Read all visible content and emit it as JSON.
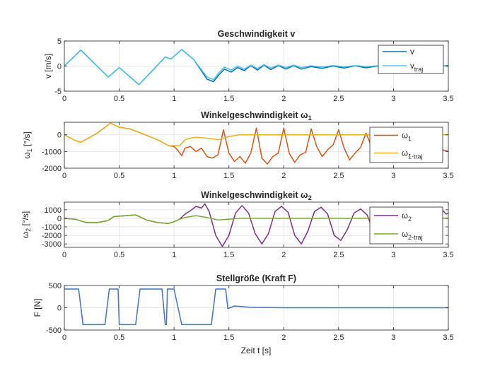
{
  "figure": {
    "xlabel": "Zeit t [s]"
  },
  "chart_data": [
    {
      "type": "line",
      "title": "Geschwindigkeit v",
      "xlabel": "",
      "ylabel": "v [m/s]",
      "xlim": [
        0,
        3.5
      ],
      "ylim": [
        -5,
        5
      ],
      "xticks": [
        0,
        0.5,
        1,
        1.5,
        2,
        2.5,
        3,
        3.5
      ],
      "xtick_labels": [
        "0",
        "0.5",
        "1",
        "1.5",
        "2",
        "2.5",
        "3",
        "3.5"
      ],
      "yticks": [
        -5,
        0,
        5
      ],
      "ytick_labels": [
        "-5",
        "0",
        "5"
      ],
      "grid": true,
      "legend": "top-right",
      "series": [
        {
          "name": "v",
          "color": "#0072BD",
          "x": [
            0,
            0.15,
            0.4,
            0.5,
            0.68,
            0.92,
            0.97,
            1.07,
            1.18,
            1.3,
            1.36,
            1.41,
            1.46,
            1.52,
            1.58,
            1.64,
            1.7,
            1.76,
            1.82,
            1.88,
            1.95,
            2.02,
            2.09,
            2.16,
            2.25,
            2.35,
            2.45,
            2.55,
            2.65,
            2.75,
            2.85,
            2.95,
            3.05,
            3.15,
            3.25,
            3.35,
            3.5
          ],
          "y": [
            0,
            3.2,
            -2.2,
            -0.3,
            -3.7,
            1.8,
            1.4,
            3.3,
            1.3,
            -2.6,
            -3.1,
            -1.7,
            -0.6,
            -1.2,
            -0.3,
            -0.9,
            0.1,
            -0.8,
            0.2,
            -0.7,
            0.1,
            -0.6,
            0.1,
            -0.6,
            -0.1,
            -0.45,
            0.0,
            -0.4,
            0.05,
            -0.35,
            0.0,
            -0.3,
            0.05,
            -0.25,
            0.0,
            -0.15,
            0.1
          ]
        },
        {
          "name": "v_traj",
          "color": "#4DBEEE",
          "x": [
            0,
            0.15,
            0.4,
            0.5,
            0.68,
            0.92,
            0.97,
            1.07,
            1.18,
            1.3,
            1.36,
            1.41,
            1.46,
            1.52,
            1.58,
            1.64,
            1.7,
            1.76,
            1.82,
            1.88,
            1.95,
            2.02,
            2.09,
            2.16,
            2.25,
            2.35,
            2.45,
            2.55,
            2.65,
            2.75,
            2.85,
            2.95,
            3.05,
            3.15,
            3.25,
            3.35,
            3.5
          ],
          "y": [
            0,
            3.2,
            -2.2,
            -0.3,
            -3.7,
            1.8,
            1.4,
            3.3,
            1.3,
            -2.2,
            -2.7,
            -1.3,
            -0.2,
            -0.8,
            0.0,
            -0.6,
            0.2,
            -0.5,
            0.3,
            -0.4,
            0.2,
            -0.3,
            0.2,
            -0.3,
            0.05,
            -0.2,
            0.1,
            -0.15,
            0.1,
            -0.1,
            0.05,
            -0.1,
            0.05,
            -0.05,
            0.05,
            0.0,
            0.0
          ]
        }
      ]
    },
    {
      "type": "line",
      "title": "Winkelgeschwindigkeit ω1",
      "xlabel": "",
      "ylabel": "ω1 [°/s]",
      "xlim": [
        0,
        3.5
      ],
      "ylim": [
        -2000,
        750
      ],
      "xticks": [
        0,
        0.5,
        1,
        1.5,
        2,
        2.5,
        3,
        3.5
      ],
      "xtick_labels": [
        "0",
        "0.5",
        "1",
        "1.5",
        "2",
        "2.5",
        "3",
        "3.5"
      ],
      "yticks": [
        -2000,
        -1000,
        0
      ],
      "ytick_labels": [
        "-2000",
        "-1000",
        "0"
      ],
      "grid": true,
      "legend": "top-right",
      "series": [
        {
          "name": "ω1",
          "color": "#D95319",
          "x": [
            0,
            0.1,
            0.15,
            0.3,
            0.42,
            0.5,
            0.6,
            0.7,
            0.85,
            0.95,
            1.0,
            1.03,
            1.07,
            1.1,
            1.15,
            1.2,
            1.25,
            1.3,
            1.35,
            1.4,
            1.45,
            1.5,
            1.55,
            1.6,
            1.65,
            1.7,
            1.75,
            1.8,
            1.85,
            1.9,
            1.95,
            2.0,
            2.05,
            2.1,
            2.15,
            2.2,
            2.25,
            2.3,
            2.35,
            2.4,
            2.45,
            2.5,
            2.55,
            2.6,
            2.65,
            2.7,
            2.75,
            2.8,
            2.85,
            2.9,
            2.95,
            3.0,
            3.05,
            3.1,
            3.15,
            3.2,
            3.25,
            3.3,
            3.35,
            3.4,
            3.45,
            3.5
          ],
          "y": [
            0,
            -350,
            -450,
            100,
            700,
            450,
            350,
            100,
            -300,
            -650,
            -700,
            -900,
            -1250,
            -800,
            -700,
            -1000,
            -800,
            -1300,
            -1400,
            -1200,
            300,
            -1100,
            -1600,
            -1300,
            -1700,
            -1100,
            400,
            -1400,
            -1750,
            -1300,
            -1100,
            400,
            -1100,
            -1650,
            -1200,
            -1050,
            350,
            -700,
            -1300,
            -900,
            -600,
            300,
            -800,
            -1500,
            -1100,
            -750,
            100,
            -700,
            -1450,
            -1000,
            -800,
            50,
            -800,
            -1500,
            -1100,
            -800,
            0,
            -700,
            -1400,
            -900,
            -900,
            -1000
          ]
        },
        {
          "name": "ω1-traj",
          "color": "#EDB120",
          "x": [
            0,
            0.1,
            0.15,
            0.3,
            0.42,
            0.5,
            0.6,
            0.7,
            0.85,
            0.95,
            1.0,
            1.05,
            1.1,
            1.15,
            1.2,
            1.3,
            1.4,
            1.5,
            1.6,
            1.8,
            2.0,
            2.5,
            3.0,
            3.5
          ],
          "y": [
            0,
            -350,
            -450,
            100,
            700,
            450,
            350,
            100,
            -300,
            -650,
            -650,
            -650,
            -300,
            -200,
            -150,
            -200,
            -300,
            -100,
            0,
            0,
            0,
            0,
            0,
            0
          ]
        }
      ]
    },
    {
      "type": "line",
      "title": "Winkelgeschwindigkeit ω2",
      "xlabel": "",
      "ylabel": "ω2 [°/s]",
      "xlim": [
        0,
        3.5
      ],
      "ylim": [
        -3400,
        1900
      ],
      "xticks": [
        0,
        0.5,
        1,
        1.5,
        2,
        2.5,
        3,
        3.5
      ],
      "xtick_labels": [
        "0",
        "0.5",
        "1",
        "1.5",
        "2",
        "2.5",
        "3",
        "3.5"
      ],
      "yticks": [
        -3000,
        -2000,
        -1000,
        0,
        1000
      ],
      "ytick_labels": [
        "-3000",
        "-2000",
        "-1000",
        "0",
        "1000"
      ],
      "grid": true,
      "legend": "top-right",
      "series": [
        {
          "name": "ω2",
          "color": "#7E2F8E",
          "x": [
            0,
            0.1,
            0.2,
            0.3,
            0.4,
            0.45,
            0.55,
            0.65,
            0.75,
            0.85,
            0.95,
            1.0,
            1.05,
            1.1,
            1.15,
            1.2,
            1.25,
            1.28,
            1.32,
            1.38,
            1.44,
            1.5,
            1.56,
            1.62,
            1.68,
            1.74,
            1.8,
            1.86,
            1.92,
            1.98,
            2.04,
            2.1,
            2.16,
            2.22,
            2.28,
            2.34,
            2.4,
            2.46,
            2.52,
            2.58,
            2.64,
            2.7,
            2.76,
            2.82,
            2.88,
            2.94,
            3.0,
            3.06,
            3.12,
            3.18,
            3.24,
            3.3,
            3.36,
            3.42,
            3.48,
            3.5
          ],
          "y": [
            0,
            -100,
            -500,
            -500,
            -250,
            200,
            300,
            400,
            -200,
            -500,
            -600,
            -400,
            -100,
            500,
            900,
            1400,
            1200,
            1700,
            800,
            -2000,
            -3300,
            -2000,
            600,
            1500,
            600,
            -1800,
            -3000,
            -1800,
            800,
            1400,
            700,
            -2000,
            -3000,
            -1500,
            800,
            1300,
            500,
            -2000,
            -2600,
            -1300,
            600,
            1100,
            400,
            -1600,
            -2300,
            -1100,
            600,
            1000,
            300,
            -1200,
            -1700,
            -700,
            500,
            1300,
            500,
            600
          ]
        },
        {
          "name": "ω2-traj",
          "color": "#77AC30",
          "x": [
            0,
            0.1,
            0.2,
            0.3,
            0.4,
            0.45,
            0.55,
            0.65,
            0.75,
            0.85,
            0.95,
            1.0,
            1.05,
            1.1,
            1.2,
            1.3,
            1.4,
            1.5,
            1.6,
            1.8,
            2.0,
            2.5,
            3.0,
            3.5
          ],
          "y": [
            0,
            -100,
            -500,
            -500,
            -250,
            200,
            300,
            400,
            -200,
            -500,
            -600,
            -400,
            -100,
            100,
            300,
            100,
            -200,
            -100,
            0,
            0,
            0,
            0,
            0,
            0
          ]
        }
      ]
    },
    {
      "type": "line",
      "title": "Stellgröße (Kraft F)",
      "xlabel": "Zeit t [s]",
      "ylabel": "F [N]",
      "xlim": [
        0,
        3.5
      ],
      "ylim": [
        -500,
        500
      ],
      "xticks": [
        0,
        0.5,
        1,
        1.5,
        2,
        2.5,
        3,
        3.5
      ],
      "xtick_labels": [
        "0",
        "0.5",
        "1",
        "1.5",
        "2",
        "2.5",
        "3",
        "3.5"
      ],
      "yticks": [
        -500,
        0,
        500
      ],
      "ytick_labels": [
        "-500",
        "0",
        "500"
      ],
      "grid": true,
      "legend": "none",
      "series": [
        {
          "name": "F",
          "color": "#4472C4",
          "x": [
            0,
            0.13,
            0.17,
            0.37,
            0.41,
            0.44,
            0.49,
            0.5,
            0.65,
            0.69,
            0.89,
            0.92,
            0.93,
            0.94,
            0.97,
            1.0,
            1.07,
            1.12,
            1.34,
            1.38,
            1.47,
            1.49,
            1.51,
            1.55,
            1.6,
            1.7,
            2.0,
            2.5,
            3.0,
            3.5
          ],
          "y": [
            420,
            420,
            -380,
            -380,
            420,
            420,
            420,
            -380,
            -380,
            420,
            420,
            -380,
            -380,
            420,
            420,
            420,
            -380,
            -380,
            -380,
            420,
            420,
            -20,
            0,
            40,
            30,
            10,
            0,
            0,
            0,
            0
          ]
        }
      ]
    }
  ]
}
